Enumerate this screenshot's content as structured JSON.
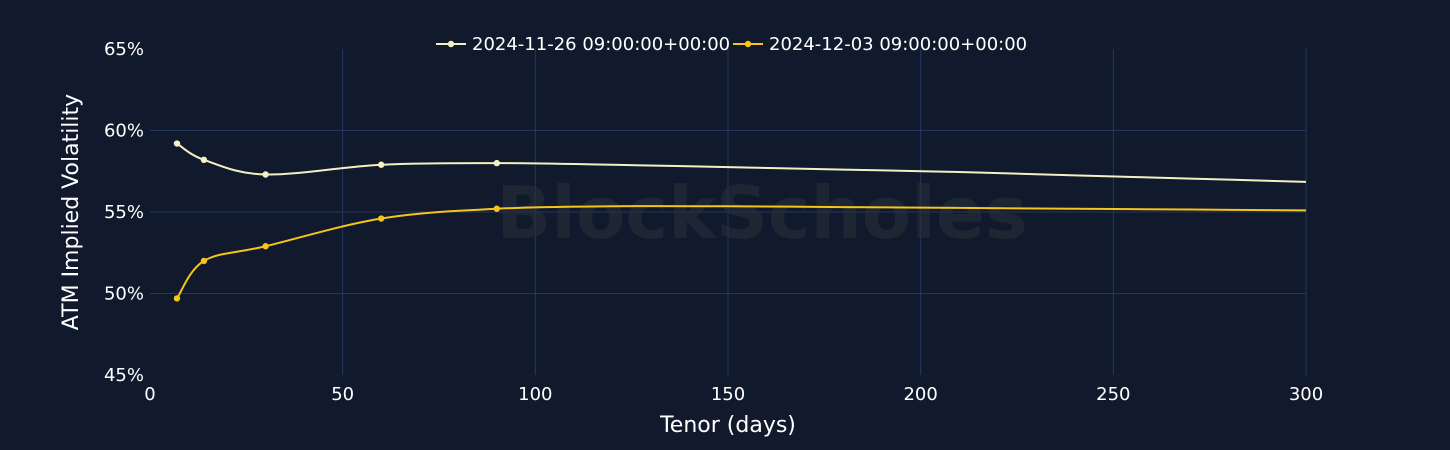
{
  "chart_data": {
    "type": "line",
    "xlabel": "Tenor (days)",
    "ylabel": "ATM Implied Volatility",
    "xlim": [
      0,
      300
    ],
    "ylim": [
      45,
      65
    ],
    "x_ticks": [
      0,
      50,
      100,
      150,
      200,
      250,
      300
    ],
    "y_ticks": [
      45,
      50,
      55,
      60,
      65
    ],
    "y_tick_labels": [
      "45%",
      "50%",
      "55%",
      "60%",
      "65%"
    ],
    "grid": true,
    "legend_position": "top-center",
    "watermark": "BlockScholes",
    "series": [
      {
        "name": "2024-11-26 09:00:00+00:00",
        "color": "#f5f0c0",
        "marker_x": [
          7,
          14,
          30,
          60,
          90
        ],
        "marker_y": [
          59.2,
          58.2,
          57.3,
          57.9,
          58.0
        ],
        "x": [
          7,
          14,
          30,
          60,
          90,
          120,
          150,
          180,
          210,
          240,
          270,
          300
        ],
        "y": [
          59.2,
          58.2,
          57.3,
          57.9,
          58.0,
          57.9,
          57.75,
          57.6,
          57.45,
          57.25,
          57.05,
          56.85
        ]
      },
      {
        "name": "2024-12-03 09:00:00+00:00",
        "color": "#f5c518",
        "marker_x": [
          7,
          14,
          30,
          60,
          90
        ],
        "marker_y": [
          49.7,
          52.0,
          52.9,
          54.6,
          55.2
        ],
        "x": [
          7,
          14,
          30,
          60,
          90,
          120,
          150,
          180,
          210,
          240,
          270,
          300
        ],
        "y": [
          49.7,
          52.0,
          52.9,
          54.6,
          55.2,
          55.35,
          55.35,
          55.3,
          55.25,
          55.2,
          55.15,
          55.1
        ]
      }
    ]
  }
}
